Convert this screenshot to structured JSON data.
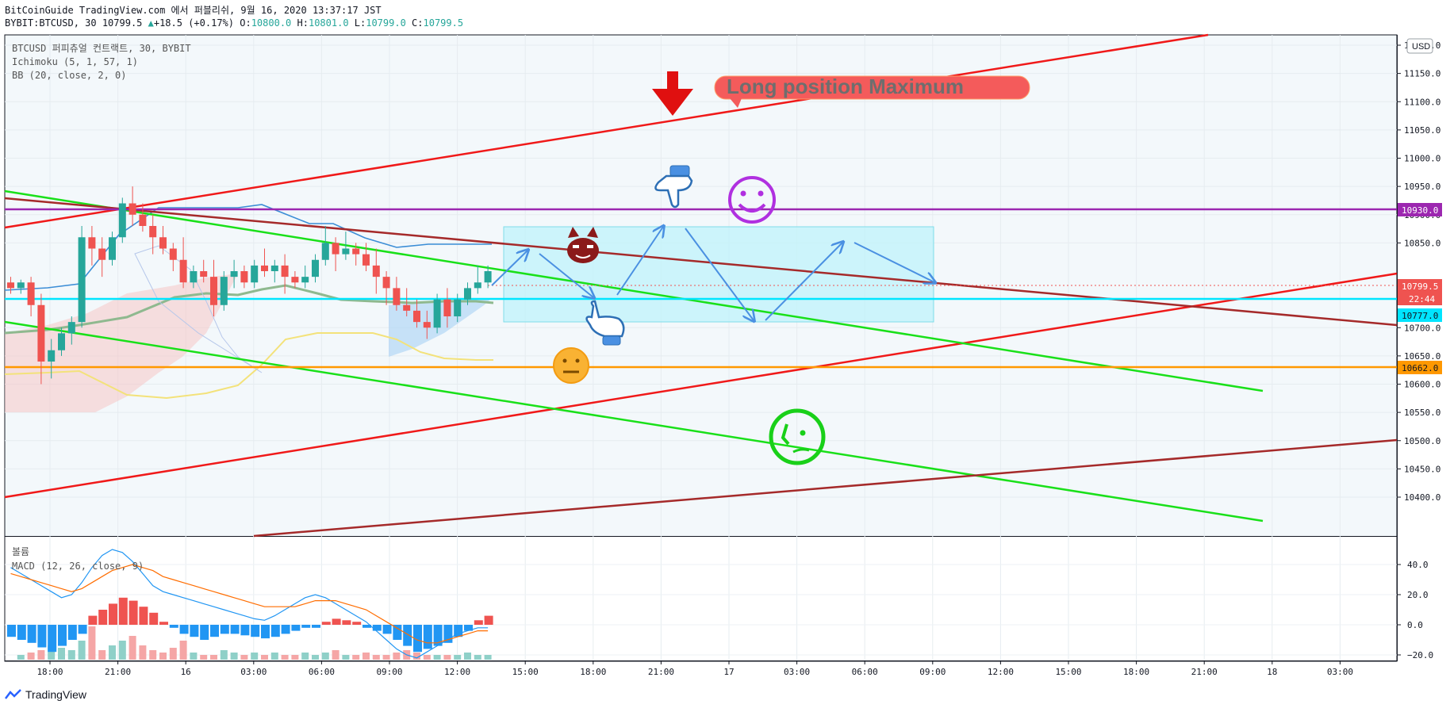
{
  "header": {
    "line1": "BitCoinGuide TradingView.com 에서 퍼블리쉬, 9월 16, 2020 13:37:17 JST",
    "line2_prefix": "BYBIT:BTCUSD, 30 10799.5",
    "line2_change": "+18.5 (+0.17%)",
    "o_label": "O:",
    "o_value": "10800.0",
    "h_label": "H:",
    "h_value": "10801.0",
    "l_label": "L:",
    "l_value": "10799.0",
    "c_label": "C:",
    "c_value": "10799.5"
  },
  "legend": {
    "symbol": "BTCUSD 퍼피츄얼 컨트랙트, 30, BYBIT",
    "ichimoku": "Ichimoku (5, 1, 57, 1)",
    "bb": "BB (20, close, 2, 0)",
    "volume": "볼륨",
    "macd": "MACD (12, 26, close, 9)"
  },
  "currency_button": "USD",
  "annotation": "Long position Maximum",
  "price_tags": {
    "purple": "10930.0",
    "last": "10799.5",
    "countdown": "22:44",
    "cyan": "10777.0",
    "orange": "10662.0"
  },
  "colors": {
    "up": "#26a69a",
    "down": "#ef5350",
    "purple": "#9c27b0",
    "cyan": "#00e5ff",
    "orange": "#ff9800",
    "red_line": "#f01919",
    "green_line": "#19e019",
    "brown_line": "#a52a2a",
    "arrow_blue": "#4a90e2"
  },
  "chart_data": {
    "type": "candlestick",
    "price_axis": {
      "ticks": [
        11200,
        11150,
        11100,
        11050,
        11000,
        10950,
        10900,
        10850,
        10700,
        10650,
        10600,
        10550,
        10500,
        10450,
        10400
      ],
      "tick_labels": [
        "11200.0",
        "11150.0",
        "11100.0",
        "11050.0",
        "11000.0",
        "10950.0",
        "10900.0",
        "10850.0",
        "10700.0",
        "10650.0",
        "10600.0",
        "10550.0",
        "10500.0",
        "10450.0",
        "10400.0"
      ]
    },
    "macd_axis": {
      "ticks": [
        40,
        20,
        0,
        -20
      ],
      "tick_labels": [
        "40.0",
        "20.0",
        "0.0",
        "−20.0"
      ]
    },
    "time_axis": {
      "labels": [
        "18:00",
        "21:00",
        "16",
        "03:00",
        "06:00",
        "09:00",
        "12:00",
        "15:00",
        "18:00",
        "21:00",
        "17",
        "03:00",
        "06:00",
        "09:00",
        "12:00",
        "15:00",
        "18:00",
        "21:00",
        "18",
        "03:00"
      ]
    },
    "candles": [
      [
        10780,
        10790,
        10760,
        10770
      ],
      [
        10770,
        10785,
        10760,
        10780
      ],
      [
        10780,
        10790,
        10720,
        10740
      ],
      [
        10740,
        10760,
        10600,
        10640
      ],
      [
        10640,
        10680,
        10610,
        10660
      ],
      [
        10660,
        10700,
        10650,
        10690
      ],
      [
        10690,
        10720,
        10670,
        10710
      ],
      [
        10710,
        10880,
        10700,
        10860
      ],
      [
        10860,
        10880,
        10810,
        10840
      ],
      [
        10840,
        10860,
        10790,
        10820
      ],
      [
        10820,
        10870,
        10810,
        10860
      ],
      [
        10860,
        10930,
        10850,
        10920
      ],
      [
        10920,
        10950,
        10880,
        10900
      ],
      [
        10900,
        10920,
        10870,
        10880
      ],
      [
        10880,
        10900,
        10830,
        10860
      ],
      [
        10860,
        10880,
        10830,
        10840
      ],
      [
        10840,
        10850,
        10800,
        10820
      ],
      [
        10820,
        10860,
        10770,
        10780
      ],
      [
        10780,
        10810,
        10770,
        10800
      ],
      [
        10800,
        10820,
        10780,
        10790
      ],
      [
        10790,
        10820,
        10720,
        10740
      ],
      [
        10740,
        10800,
        10730,
        10790
      ],
      [
        10790,
        10820,
        10770,
        10800
      ],
      [
        10800,
        10810,
        10770,
        10780
      ],
      [
        10780,
        10820,
        10770,
        10810
      ],
      [
        10810,
        10840,
        10790,
        10800
      ],
      [
        10800,
        10820,
        10780,
        10810
      ],
      [
        10810,
        10830,
        10760,
        10790
      ],
      [
        10790,
        10800,
        10770,
        10780
      ],
      [
        10780,
        10810,
        10770,
        10790
      ],
      [
        10790,
        10830,
        10780,
        10820
      ],
      [
        10820,
        10880,
        10810,
        10850
      ],
      [
        10850,
        10860,
        10800,
        10830
      ],
      [
        10830,
        10870,
        10820,
        10840
      ],
      [
        10840,
        10850,
        10810,
        10830
      ],
      [
        10830,
        10850,
        10800,
        10810
      ],
      [
        10810,
        10840,
        10760,
        10790
      ],
      [
        10790,
        10800,
        10740,
        10770
      ],
      [
        10770,
        10790,
        10730,
        10740
      ],
      [
        10740,
        10770,
        10720,
        10730
      ],
      [
        10730,
        10750,
        10700,
        10710
      ],
      [
        10710,
        10730,
        10680,
        10700
      ],
      [
        10700,
        10760,
        10690,
        10750
      ],
      [
        10750,
        10770,
        10700,
        10720
      ],
      [
        10720,
        10760,
        10710,
        10750
      ],
      [
        10750,
        10780,
        10740,
        10770
      ],
      [
        10770,
        10810,
        10760,
        10780
      ],
      [
        10780,
        10810,
        10770,
        10800
      ]
    ],
    "macd_hist": [
      -8,
      -10,
      -12,
      -15,
      -18,
      -14,
      -10,
      -6,
      6,
      10,
      14,
      18,
      16,
      12,
      8,
      2,
      -2,
      -6,
      -8,
      -10,
      -8,
      -6,
      -6,
      -7,
      -8,
      -9,
      -8,
      -6,
      -4,
      -2,
      -2,
      2,
      4,
      3,
      2,
      -2,
      -4,
      -6,
      -10,
      -14,
      -18,
      -16,
      -14,
      -12,
      -8,
      -4,
      3,
      6
    ],
    "volume": [
      0,
      2,
      3,
      4,
      6,
      5,
      4,
      8,
      14,
      4,
      6,
      8,
      10,
      6,
      4,
      3,
      5,
      8,
      3,
      2,
      2,
      4,
      3,
      2,
      3,
      2,
      3,
      2,
      2,
      3,
      2,
      3,
      4,
      2,
      2,
      3,
      2,
      2,
      3,
      4,
      3,
      2,
      2,
      2,
      2,
      3,
      2,
      2
    ],
    "macd_line": [
      38,
      34,
      30,
      26,
      22,
      18,
      20,
      28,
      38,
      46,
      50,
      48,
      42,
      34,
      26,
      22,
      20,
      18,
      16,
      14,
      12,
      10,
      8,
      6,
      4,
      3,
      6,
      10,
      14,
      18,
      20,
      18,
      14,
      10,
      6,
      2,
      -4,
      -10,
      -16,
      -20,
      -22,
      -18,
      -14,
      -10,
      -6,
      -4,
      -2,
      -2
    ],
    "signal_line": [
      34,
      32,
      30,
      28,
      26,
      24,
      22,
      24,
      28,
      32,
      36,
      38,
      40,
      38,
      36,
      32,
      30,
      28,
      26,
      24,
      22,
      20,
      18,
      16,
      14,
      12,
      12,
      12,
      12,
      14,
      16,
      16,
      16,
      14,
      12,
      10,
      6,
      2,
      -2,
      -6,
      -10,
      -12,
      -12,
      -10,
      -8,
      -6,
      -4,
      -4
    ]
  }
}
